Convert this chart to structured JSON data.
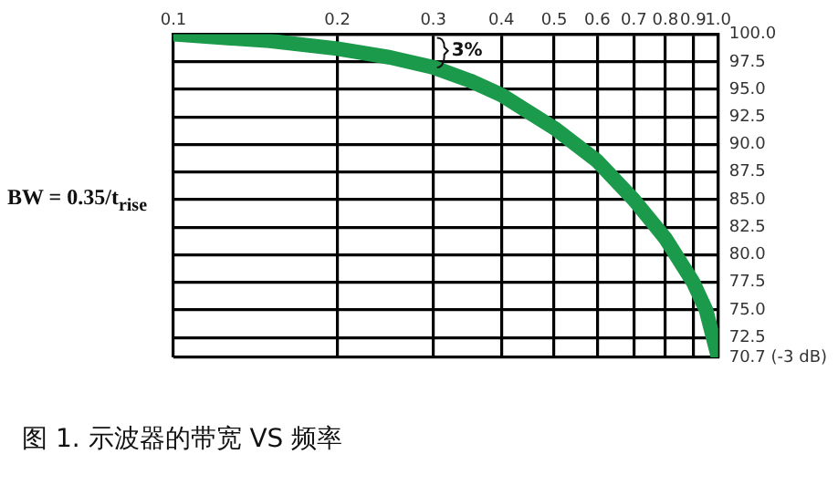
{
  "chart_data": {
    "type": "line",
    "title": "图 1. 示波器的带宽 VS 频率",
    "x": [
      0.1,
      0.15,
      0.2,
      0.25,
      0.3,
      0.35,
      0.4,
      0.5,
      0.6,
      0.7,
      0.8,
      0.9,
      0.95,
      1.0
    ],
    "series": [
      {
        "color": "#1a9a4a",
        "values": [
          100,
          99.4,
          98.7,
          97.9,
          97,
          95.8,
          94.5,
          91.5,
          88.5,
          85,
          81.5,
          77.5,
          75,
          70.7
        ]
      }
    ],
    "log": "x",
    "xlim": [
      0.1,
      1.0
    ],
    "xticks": [
      0.1,
      0.2,
      0.3,
      0.4,
      0.5,
      0.6,
      0.7,
      0.8,
      0.9,
      {
        "value": 1.0,
        "label": "1.0"
      }
    ],
    "ylim": [
      70.7,
      100
    ],
    "yticks": [
      {
        "value": 100,
        "label": "100.0"
      },
      97.5,
      {
        "value": 95,
        "label": "95.0"
      },
      92.5,
      {
        "value": 90,
        "label": "90.0"
      },
      87.5,
      {
        "value": 85,
        "label": "85.0"
      },
      82.5,
      {
        "value": 80,
        "label": "80.0"
      },
      77.5,
      {
        "value": 75,
        "label": "75.0"
      },
      72.5,
      {
        "value": 70.7,
        "label": "70.7 (-3 dB)"
      }
    ],
    "grid": true,
    "marker": "none",
    "line_style": "solid",
    "legend": false,
    "annotations": [
      "BW = 0.35/t$_{rise}$",
      {
        "text": "3%",
        "x": 0.3,
        "y": 97
      }
    ]
  }
}
